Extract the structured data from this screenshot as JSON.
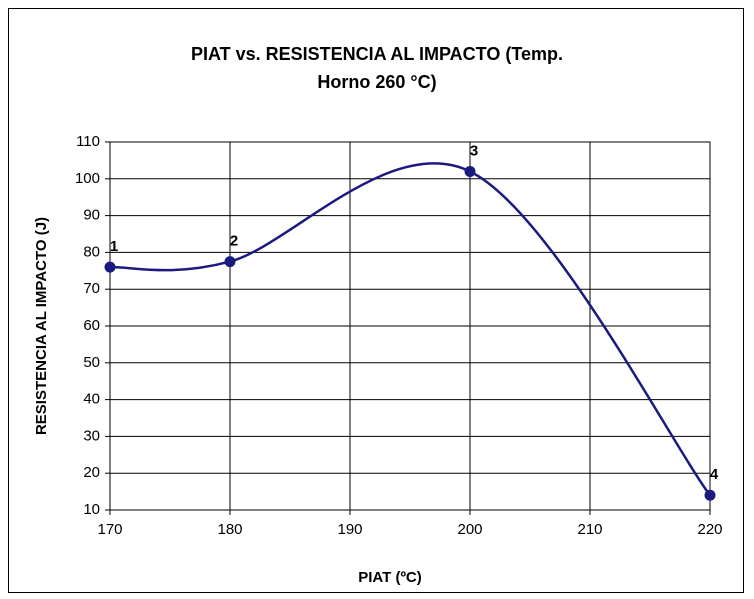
{
  "chart_data": {
    "type": "line",
    "title": "PIAT vs. RESISTENCIA AL IMPACTO  (Temp. Horno 260 °C)",
    "xlabel": "PIAT (ºC)",
    "ylabel": "RESISTENCIA AL IMPACTO (J)",
    "x": [
      170,
      180,
      200,
      220
    ],
    "series": [
      {
        "name": "PIAT vs. RESISTENCIA AL IMPACTO",
        "color": "#1a1a80",
        "values": [
          76,
          77.5,
          102,
          14
        ],
        "point_labels": [
          "1",
          "2",
          "3",
          "4"
        ]
      }
    ],
    "xlim": [
      170,
      220
    ],
    "xticks": [
      170,
      180,
      190,
      200,
      210,
      220
    ],
    "ylim": [
      10,
      110
    ],
    "yticks": [
      10,
      20,
      30,
      40,
      50,
      60,
      70,
      80,
      90,
      100,
      110
    ],
    "grid": true,
    "smooth": true
  }
}
